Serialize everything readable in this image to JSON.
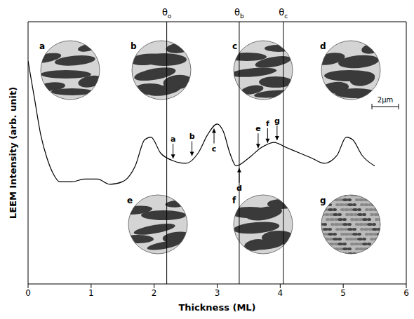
{
  "chart_data": {
    "type": "line",
    "xlabel": "Thickness (ML)",
    "ylabel": "LEEM Intensity (arb. unit)",
    "x": [
      0,
      0.1,
      0.2,
      0.3,
      0.4,
      0.5,
      0.7,
      0.9,
      1.1,
      1.3,
      1.5,
      1.7,
      1.85,
      1.95,
      2.1,
      2.3,
      2.5,
      2.7,
      2.85,
      3.0,
      3.1,
      3.2,
      3.3,
      3.5,
      3.7,
      3.9,
      4.1,
      4.3,
      4.5,
      4.7,
      4.9,
      5.05,
      5.15,
      5.3,
      5.5
    ],
    "values": [
      85,
      71,
      57,
      48,
      42,
      39,
      39,
      40,
      40,
      38,
      39,
      45,
      55,
      56,
      50,
      47,
      46,
      50,
      57,
      61,
      58,
      50,
      45,
      48,
      52,
      54,
      52,
      50,
      48,
      46,
      49,
      56,
      55,
      49,
      45
    ],
    "color": "#000000",
    "xlim": [
      0,
      6
    ],
    "xticks": [
      0,
      1,
      2,
      3,
      4,
      5,
      6
    ],
    "ylim": [
      0,
      100
    ],
    "tick_labels": "x",
    "reference_lines": [
      {
        "label": "θo",
        "x": 2.2
      },
      {
        "label": "θb",
        "x": 3.35
      },
      {
        "label": "θc",
        "x": 4.05
      }
    ],
    "markers": [
      {
        "label": "a",
        "x": 2.3,
        "y": 47,
        "side": "above"
      },
      {
        "label": "b",
        "x": 2.6,
        "y": 48,
        "side": "above"
      },
      {
        "label": "c",
        "x": 2.95,
        "y": 60,
        "side": "below"
      },
      {
        "label": "d",
        "x": 3.35,
        "y": 45,
        "side": "below"
      },
      {
        "label": "e",
        "x": 3.65,
        "y": 51,
        "side": "above"
      },
      {
        "label": "f",
        "x": 3.8,
        "y": 53,
        "side": "above"
      },
      {
        "label": "g",
        "x": 3.95,
        "y": 54,
        "side": "above"
      }
    ],
    "insets": [
      "a",
      "b",
      "c",
      "d",
      "e",
      "f",
      "g"
    ],
    "scale_bar": "2μm"
  }
}
